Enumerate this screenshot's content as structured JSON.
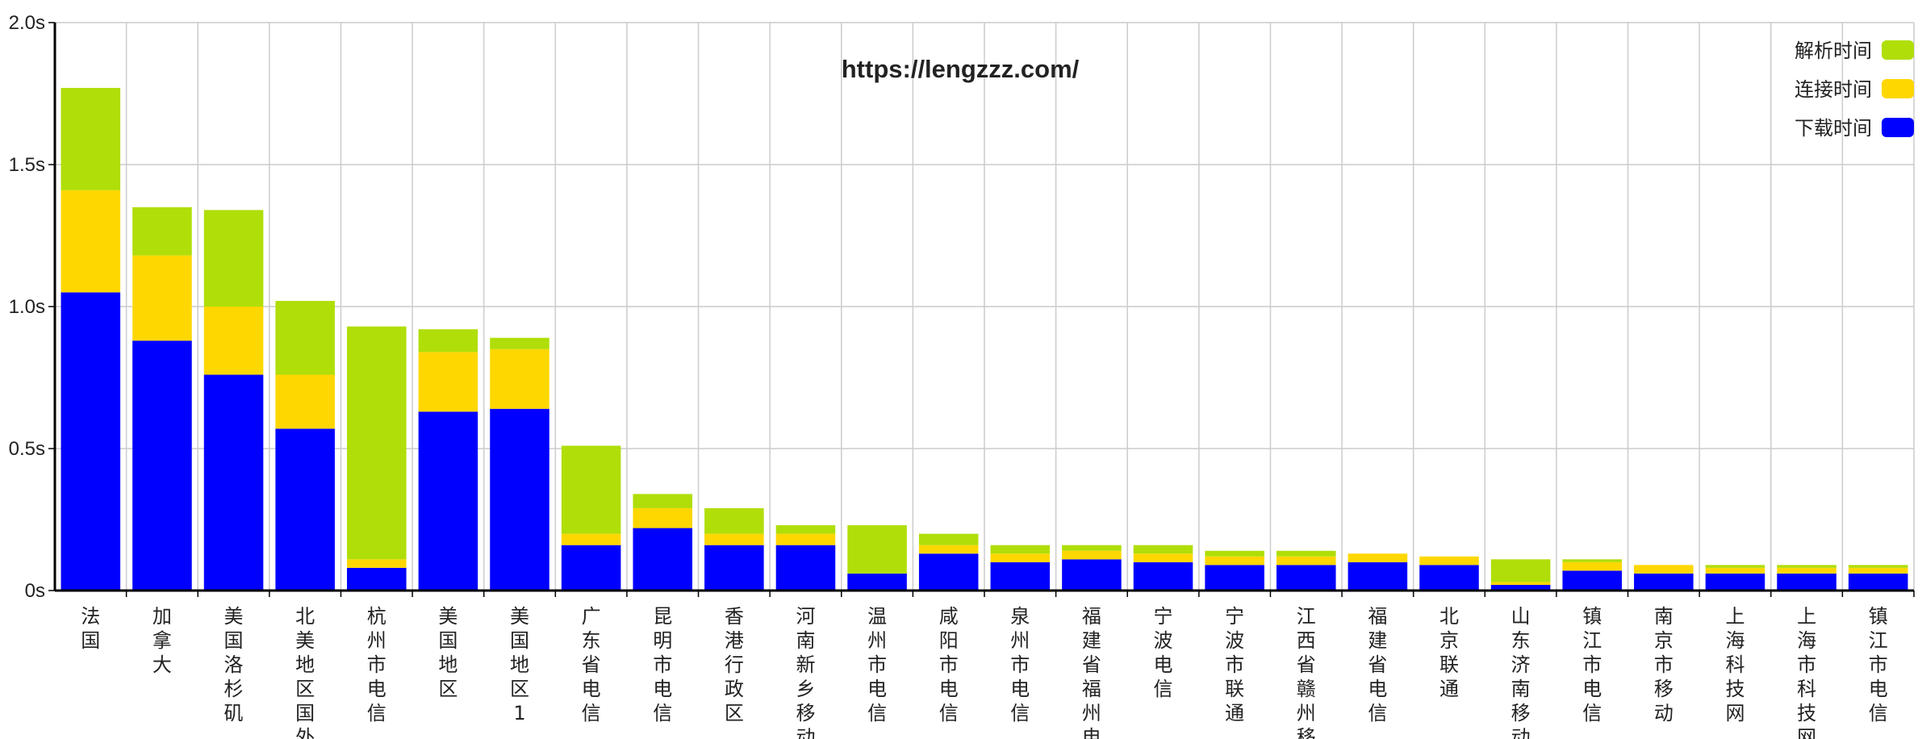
{
  "chart_data": {
    "type": "bar",
    "stacked": true,
    "title": "https://lengzzz.com/",
    "xlabel": "",
    "ylabel": "",
    "ylim": [
      0,
      2.0
    ],
    "yticks": [
      "0s",
      "0.5s",
      "1.0s",
      "1.5s",
      "2.0s"
    ],
    "ytick_values": [
      0,
      0.5,
      1.0,
      1.5,
      2.0
    ],
    "grid": true,
    "legend_position": "top-right",
    "categories": [
      "法国",
      "加拿大",
      "美国洛杉矶",
      "北美地区国外",
      "杭州市电信",
      "美国地区",
      "美国地区1",
      "广东省电信",
      "昆明市电信",
      "香港行政区",
      "河南新乡移动",
      "温州市电信",
      "咸阳市电信",
      "泉州市电信",
      "福建省福州电信",
      "宁波电信",
      "宁波市联通",
      "江西省赣州移动",
      "福建省电信",
      "北京联通",
      "山东济南移动",
      "镇江市电信",
      "南京市移动",
      "上海科技网",
      "上海市科技网",
      "镇江市电信"
    ],
    "series": [
      {
        "name": "下载时间",
        "color": "#0000ff",
        "values": [
          1.05,
          0.88,
          0.76,
          0.57,
          0.08,
          0.63,
          0.64,
          0.16,
          0.22,
          0.16,
          0.16,
          0.06,
          0.13,
          0.1,
          0.11,
          0.1,
          0.09,
          0.09,
          0.1,
          0.09,
          0.02,
          0.07,
          0.06,
          0.06,
          0.06,
          0.06
        ]
      },
      {
        "name": "连接时间",
        "color": "#ffd700",
        "values": [
          0.36,
          0.3,
          0.24,
          0.19,
          0.03,
          0.21,
          0.21,
          0.04,
          0.07,
          0.04,
          0.04,
          0.0,
          0.03,
          0.03,
          0.03,
          0.03,
          0.03,
          0.03,
          0.03,
          0.03,
          0.01,
          0.03,
          0.03,
          0.02,
          0.02,
          0.02
        ]
      },
      {
        "name": "解析时间",
        "color": "#b0de09",
        "values": [
          0.36,
          0.17,
          0.34,
          0.26,
          0.82,
          0.08,
          0.04,
          0.31,
          0.05,
          0.09,
          0.03,
          0.17,
          0.04,
          0.03,
          0.02,
          0.03,
          0.02,
          0.02,
          0.0,
          0.0,
          0.08,
          0.01,
          0.0,
          0.01,
          0.01,
          0.01
        ]
      }
    ],
    "legend_order": [
      "解析时间",
      "连接时间",
      "下载时间"
    ]
  }
}
